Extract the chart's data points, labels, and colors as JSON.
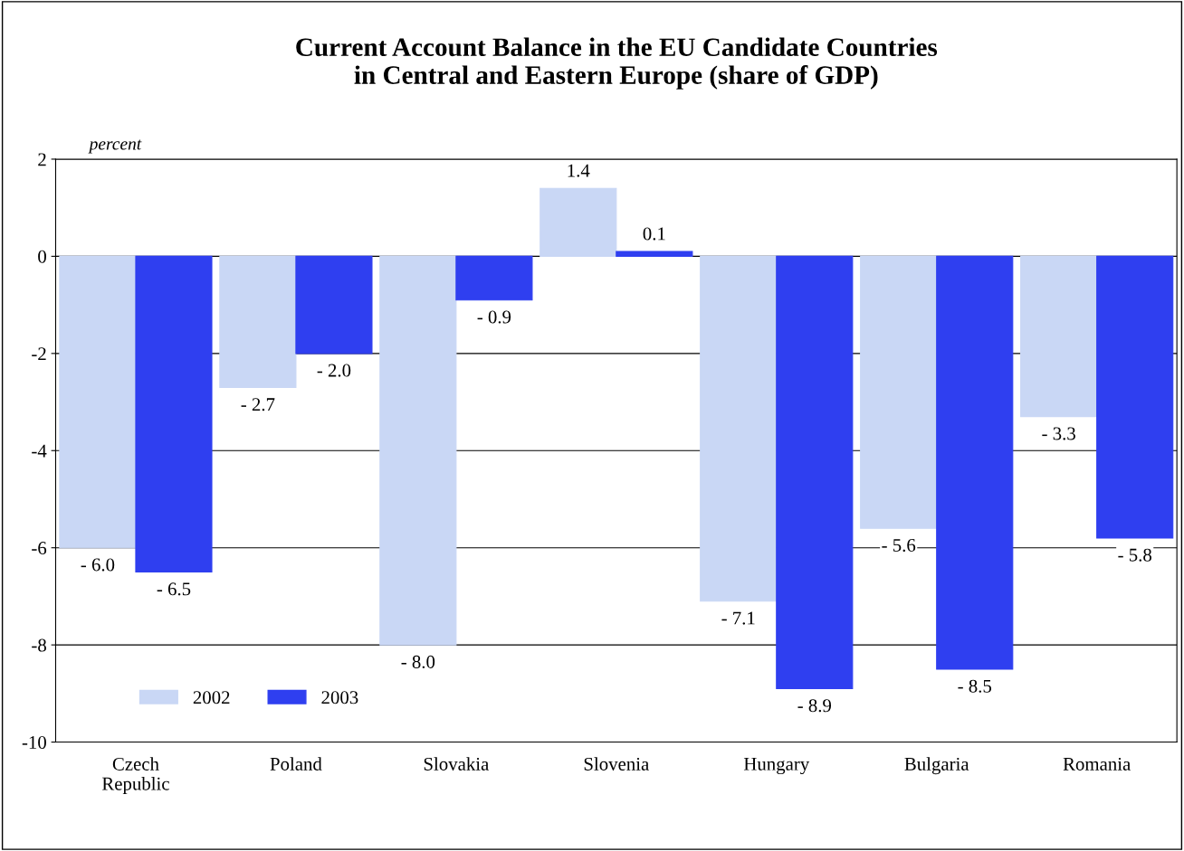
{
  "chart_data": {
    "type": "bar",
    "title": "Current Account Balance in the EU Candidate Countries\nin Central and Eastern Europe (share of GDP)",
    "ylabel": "percent",
    "categories": [
      "Czech\nRepublic",
      "Poland",
      "Slovakia",
      "Slovenia",
      "Hungary",
      "Bulgaria",
      "Romania"
    ],
    "series": [
      {
        "name": "2002",
        "color": "#c9d7f5",
        "values": [
          -6.0,
          -2.7,
          -8.0,
          1.4,
          -7.1,
          -5.6,
          -3.3
        ],
        "value_labels": [
          "- 6.0",
          "- 2.7",
          "- 8.0",
          "1.4",
          "- 7.1",
          "- 5.6",
          "- 3.3"
        ]
      },
      {
        "name": "2003",
        "color": "#2f3ff0",
        "values": [
          -6.5,
          -2.0,
          -0.9,
          0.1,
          -8.9,
          -8.5,
          -5.8
        ],
        "value_labels": [
          "- 6.5",
          "- 2.0",
          "- 0.9",
          "0.1",
          "- 8.9",
          "- 8.5",
          "- 5.8"
        ]
      }
    ],
    "ylim": [
      -10,
      2
    ],
    "yticks": [
      -10,
      -8,
      -6,
      -4,
      -2,
      0,
      2
    ],
    "grid": "y",
    "legend": "bottom left"
  }
}
